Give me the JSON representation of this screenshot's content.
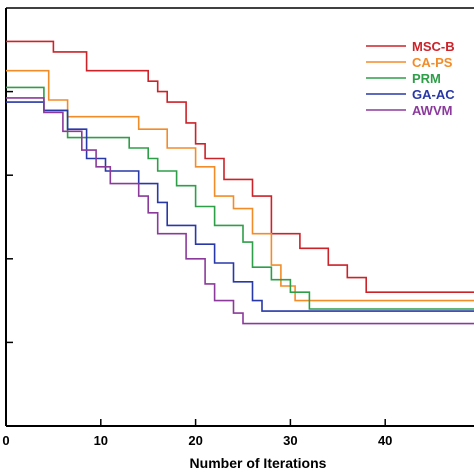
{
  "chart_data": {
    "type": "line",
    "xlabel": "Number of Iterations",
    "xlim": [
      0,
      50
    ],
    "xticks": [
      0,
      10,
      20,
      30,
      40
    ],
    "xtick_labels": [
      "0",
      "10",
      "20",
      "30",
      "40"
    ],
    "ylim": [
      0,
      100
    ],
    "yticks": [
      20,
      40,
      60,
      80
    ],
    "grid": false,
    "legend": {
      "placement": "top-right"
    },
    "series": [
      {
        "name": "MSC-B",
        "color": "#cc2229",
        "points": [
          [
            0,
            92
          ],
          [
            5,
            92
          ],
          [
            5,
            89.5
          ],
          [
            8.5,
            89.5
          ],
          [
            8.5,
            85
          ],
          [
            15,
            85
          ],
          [
            15,
            82.5
          ],
          [
            16,
            82.5
          ],
          [
            16,
            80
          ],
          [
            17,
            80
          ],
          [
            17,
            77.5
          ],
          [
            19,
            77.5
          ],
          [
            19,
            72.5
          ],
          [
            20,
            72.5
          ],
          [
            20,
            67.5
          ],
          [
            21,
            67.5
          ],
          [
            21,
            64
          ],
          [
            23,
            64
          ],
          [
            23,
            59
          ],
          [
            26,
            59
          ],
          [
            26,
            55
          ],
          [
            28,
            55
          ],
          [
            28,
            46
          ],
          [
            31,
            46
          ],
          [
            31,
            42.5
          ],
          [
            34,
            42.5
          ],
          [
            34,
            38.5
          ],
          [
            36,
            38.5
          ],
          [
            36,
            35.5
          ],
          [
            38,
            35.5
          ],
          [
            38,
            32
          ],
          [
            50,
            32
          ]
        ]
      },
      {
        "name": "CA-PS",
        "color": "#f28c28",
        "points": [
          [
            0,
            85
          ],
          [
            4.5,
            85
          ],
          [
            4.5,
            78
          ],
          [
            6.5,
            78
          ],
          [
            6.5,
            74
          ],
          [
            14,
            74
          ],
          [
            14,
            71
          ],
          [
            17,
            71
          ],
          [
            17,
            66.5
          ],
          [
            20,
            66.5
          ],
          [
            20,
            62
          ],
          [
            22,
            62
          ],
          [
            22,
            55
          ],
          [
            24,
            55
          ],
          [
            24,
            52
          ],
          [
            26,
            52
          ],
          [
            26,
            46
          ],
          [
            28,
            46
          ],
          [
            28,
            38.5
          ],
          [
            29,
            38.5
          ],
          [
            29,
            33.5
          ],
          [
            30.5,
            33.5
          ],
          [
            30.5,
            30
          ],
          [
            50,
            30
          ]
        ]
      },
      {
        "name": "PRM",
        "color": "#2e9e48",
        "points": [
          [
            0,
            81
          ],
          [
            4,
            81
          ],
          [
            4,
            75.5
          ],
          [
            6.5,
            75.5
          ],
          [
            6.5,
            69
          ],
          [
            13,
            69
          ],
          [
            13,
            66.5
          ],
          [
            15,
            66.5
          ],
          [
            15,
            64
          ],
          [
            16,
            64
          ],
          [
            16,
            61
          ],
          [
            18,
            61
          ],
          [
            18,
            57.5
          ],
          [
            20,
            57.5
          ],
          [
            20,
            52.5
          ],
          [
            22,
            52.5
          ],
          [
            22,
            48
          ],
          [
            25,
            48
          ],
          [
            25,
            44
          ],
          [
            26,
            44
          ],
          [
            26,
            38
          ],
          [
            28,
            38
          ],
          [
            28,
            35
          ],
          [
            30,
            35
          ],
          [
            30,
            32
          ],
          [
            32,
            32
          ],
          [
            32,
            28
          ],
          [
            50,
            28
          ]
        ]
      },
      {
        "name": "GA-AC",
        "color": "#2838a8",
        "points": [
          [
            0,
            77.5
          ],
          [
            4,
            77.5
          ],
          [
            4,
            75.5
          ],
          [
            6.5,
            75.5
          ],
          [
            6.5,
            71
          ],
          [
            8.5,
            71
          ],
          [
            8.5,
            64
          ],
          [
            10.5,
            64
          ],
          [
            10.5,
            61
          ],
          [
            14,
            61
          ],
          [
            14,
            58
          ],
          [
            16,
            58
          ],
          [
            16,
            53.5
          ],
          [
            17,
            53.5
          ],
          [
            17,
            48
          ],
          [
            20,
            48
          ],
          [
            20,
            43.5
          ],
          [
            22,
            43.5
          ],
          [
            22,
            39
          ],
          [
            24,
            39
          ],
          [
            24,
            34.5
          ],
          [
            26,
            34.5
          ],
          [
            26,
            30
          ],
          [
            27,
            30
          ],
          [
            27,
            27.5
          ],
          [
            50,
            27.5
          ]
        ]
      },
      {
        "name": "AWVM",
        "color": "#8b3a9c",
        "points": [
          [
            0,
            78.5
          ],
          [
            4,
            78.5
          ],
          [
            4,
            75
          ],
          [
            6,
            75
          ],
          [
            6,
            70.5
          ],
          [
            8,
            70.5
          ],
          [
            8,
            66
          ],
          [
            9.5,
            66
          ],
          [
            9.5,
            62
          ],
          [
            11,
            62
          ],
          [
            11,
            58
          ],
          [
            14,
            58
          ],
          [
            14,
            55
          ],
          [
            15,
            55
          ],
          [
            15,
            51
          ],
          [
            16,
            51
          ],
          [
            16,
            46
          ],
          [
            19,
            46
          ],
          [
            19,
            40
          ],
          [
            21,
            40
          ],
          [
            21,
            34
          ],
          [
            22,
            34
          ],
          [
            22,
            30
          ],
          [
            24,
            30
          ],
          [
            24,
            27
          ],
          [
            25,
            27
          ],
          [
            25,
            24.5
          ],
          [
            50,
            24.5
          ]
        ]
      }
    ]
  }
}
